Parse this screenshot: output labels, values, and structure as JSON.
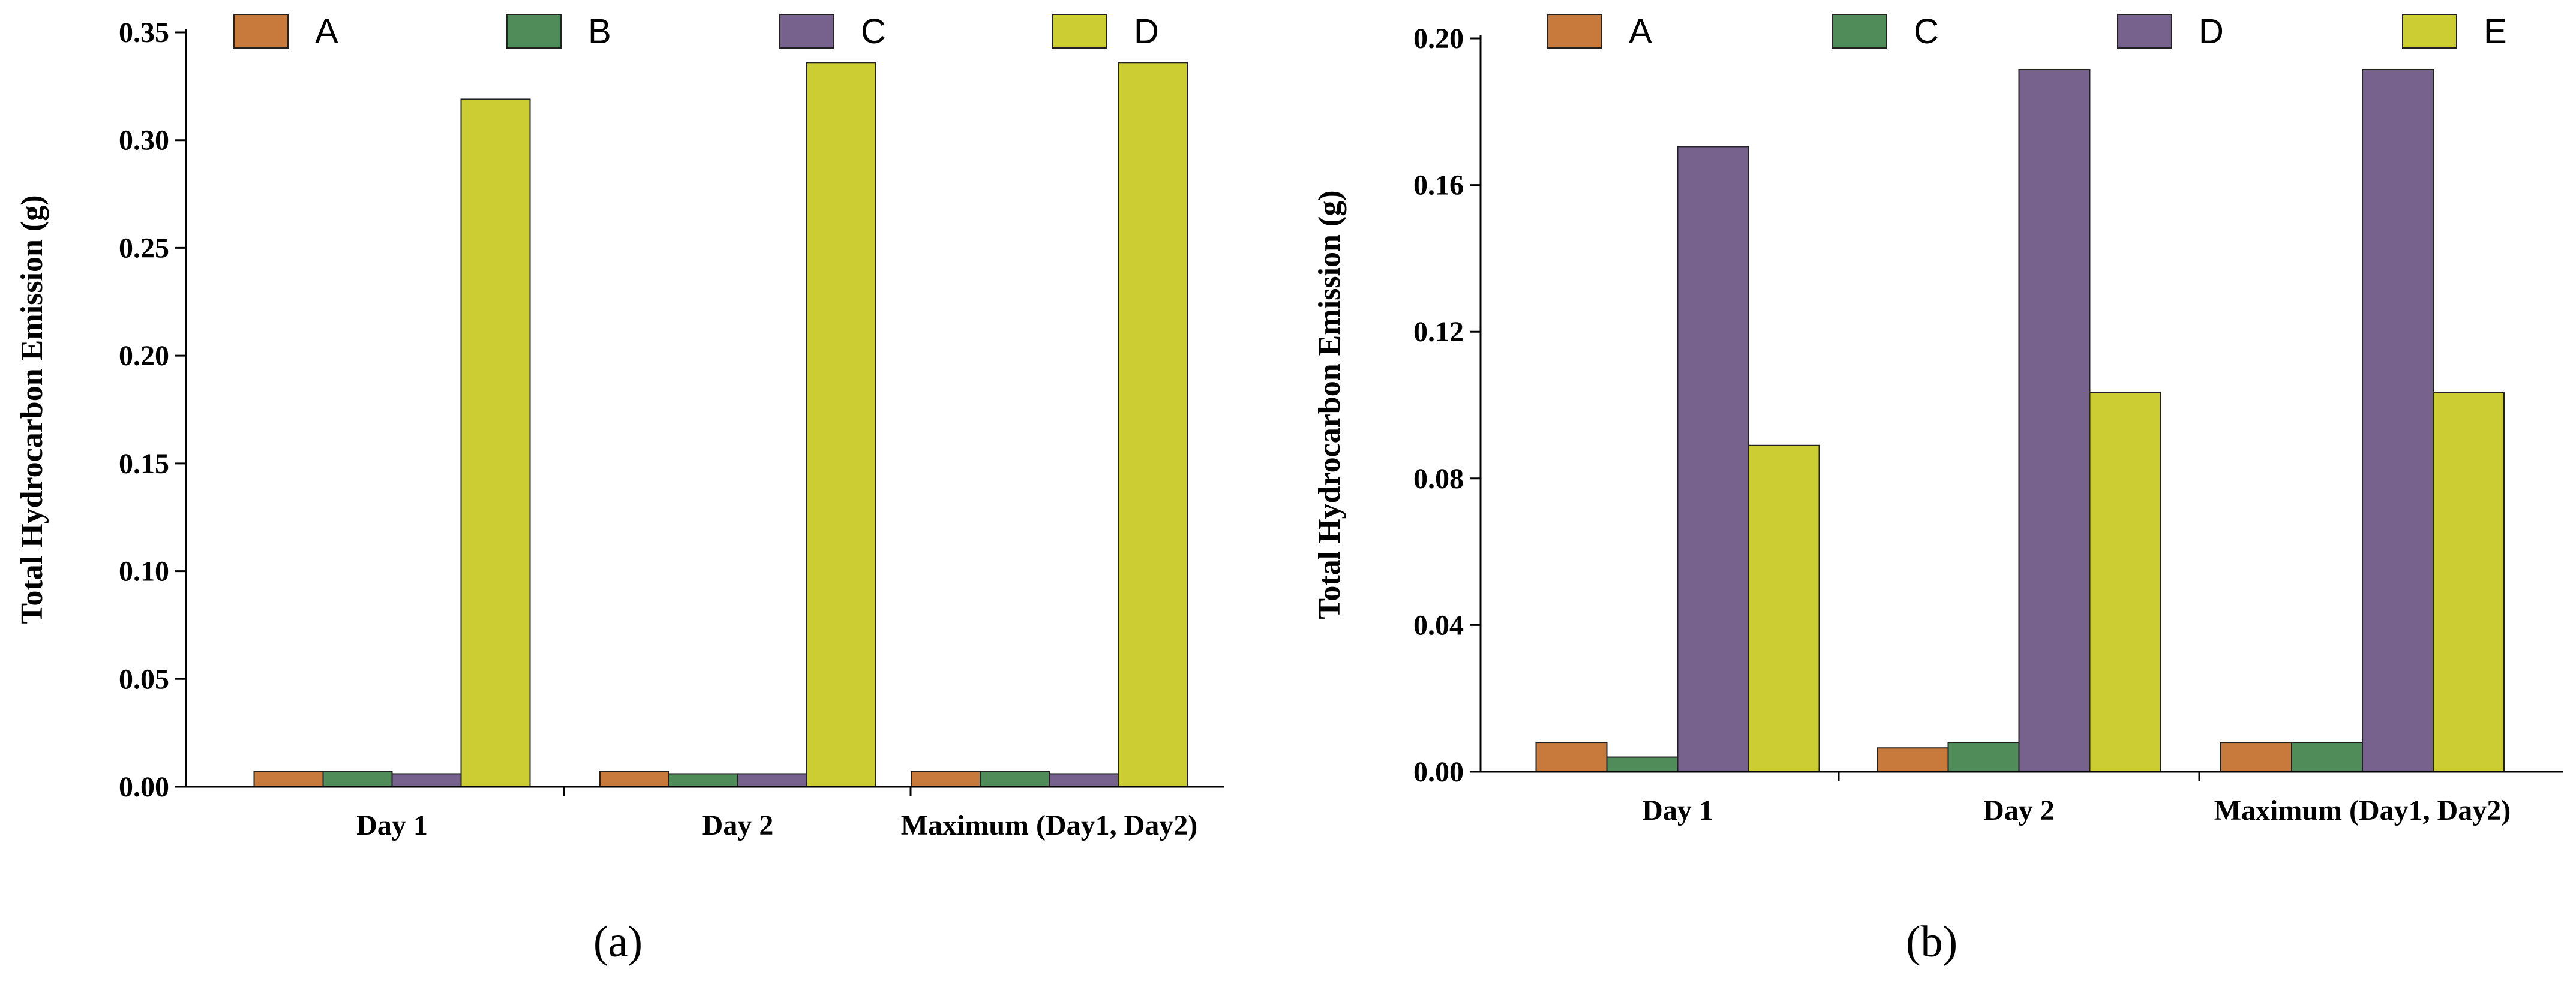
{
  "chart_data": [
    {
      "type": "bar",
      "panel_label": "(a)",
      "panel_letter": "a",
      "title": "",
      "xlabel": "",
      "ylabel": "Total Hydrocarbon Emission (g)",
      "ylim": [
        0,
        0.35
      ],
      "yticks": [
        "0.00",
        "0.05",
        "0.10",
        "0.15",
        "0.20",
        "0.25",
        "0.30",
        "0.35"
      ],
      "categories": [
        "Day 1",
        "Day 2",
        "Maximum (Day1, Day2)"
      ],
      "legend_position": "top-left",
      "series": [
        {
          "name": "A",
          "color": "#C87A3C",
          "values": [
            0.007,
            0.007,
            0.007
          ]
        },
        {
          "name": "B",
          "color": "#4F8C5A",
          "values": [
            0.007,
            0.006,
            0.007
          ]
        },
        {
          "name": "C",
          "color": "#76628C",
          "values": [
            0.006,
            0.006,
            0.006
          ]
        },
        {
          "name": "D",
          "color": "#CCCC33",
          "values": [
            0.319,
            0.336,
            0.336
          ]
        }
      ]
    },
    {
      "type": "bar",
      "panel_label": "(b)",
      "panel_letter": "b",
      "title": "",
      "xlabel": "",
      "ylabel": "Total Hydrocarbon Emission (g)",
      "ylim": [
        0,
        0.2
      ],
      "yticks": [
        "0.00",
        "0.04",
        "0.08",
        "0.12",
        "0.16",
        "0.20"
      ],
      "categories": [
        "Day 1",
        "Day 2",
        "Maximum (Day1, Day2)"
      ],
      "legend_position": "top-left",
      "series": [
        {
          "name": "A",
          "color": "#C87A3C",
          "values": [
            0.008,
            0.0065,
            0.008
          ]
        },
        {
          "name": "C",
          "color": "#4F8C5A",
          "values": [
            0.004,
            0.008,
            0.008
          ]
        },
        {
          "name": "D",
          "color": "#76628C",
          "values": [
            0.1705,
            0.1915,
            0.1915
          ]
        },
        {
          "name": "E",
          "color": "#CCCC33",
          "values": [
            0.089,
            0.1035,
            0.1035
          ]
        }
      ]
    }
  ]
}
